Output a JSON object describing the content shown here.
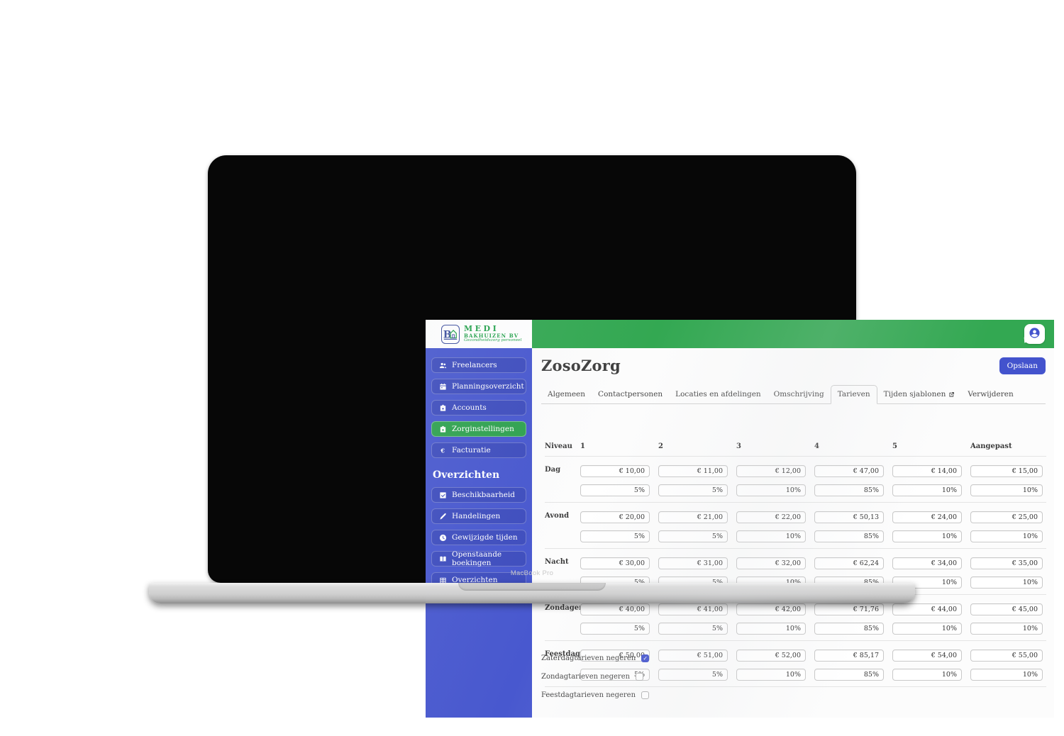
{
  "device": {
    "label": "MacBook Pro"
  },
  "logo": {
    "monogram": "B",
    "line1": "MEDI",
    "line2": "BAKHUIZEN BV",
    "tagline": "Gezondheidszorg personeel"
  },
  "sidebar": {
    "nav": [
      {
        "label": "Freelancers",
        "icon": "users-icon",
        "active": false
      },
      {
        "label": "Planningsoverzicht",
        "icon": "calendar-icon",
        "active": false
      },
      {
        "label": "Accounts",
        "icon": "medical-bag-icon",
        "active": false
      },
      {
        "label": "Zorginstellingen",
        "icon": "medical-bag-icon",
        "active": true
      },
      {
        "label": "Facturatie",
        "icon": "euro-icon",
        "active": false
      }
    ],
    "section_title": "Overzichten",
    "overview_nav": [
      {
        "label": "Beschikbaarheid",
        "icon": "check-square-icon",
        "active": false
      },
      {
        "label": "Handelingen",
        "icon": "pen-icon",
        "active": false
      },
      {
        "label": "Gewijzigde tijden",
        "icon": "clock-icon",
        "active": false
      },
      {
        "label": "Openstaande boekingen",
        "icon": "book-icon",
        "active": false
      },
      {
        "label": "Overzichten",
        "icon": "table-icon",
        "active": false
      }
    ]
  },
  "header": {
    "title": "ZosoZorg",
    "save_label": "Opslaan",
    "user_icon": "person-circle-icon"
  },
  "tabs": [
    {
      "label": "Algemeen",
      "active": false,
      "external": false
    },
    {
      "label": "Contactpersonen",
      "active": false,
      "external": false
    },
    {
      "label": "Locaties en afdelingen",
      "active": false,
      "external": false
    },
    {
      "label": "Omschrijving",
      "active": false,
      "external": false
    },
    {
      "label": "Tarieven",
      "active": true,
      "external": false
    },
    {
      "label": "Tijden sjablonen",
      "active": false,
      "external": true
    },
    {
      "label": "Verwijderen",
      "active": false,
      "external": false
    }
  ],
  "tariffs": {
    "columns": [
      "Niveau",
      "1",
      "2",
      "3",
      "4",
      "5",
      "Aangepast"
    ],
    "rows": [
      {
        "label": "Dag",
        "values": [
          "€ 10,00",
          "€ 11,00",
          "€ 12,00",
          "€ 47,00",
          "€ 14,00",
          "€ 15,00"
        ],
        "percents": [
          "5%",
          "5%",
          "10%",
          "85%",
          "10%",
          "10%"
        ]
      },
      {
        "label": "Avond",
        "values": [
          "€ 20,00",
          "€ 21,00",
          "€ 22,00",
          "€ 50,13",
          "€ 24,00",
          "€ 25,00"
        ],
        "percents": [
          "5%",
          "5%",
          "10%",
          "85%",
          "10%",
          "10%"
        ]
      },
      {
        "label": "Nacht",
        "values": [
          "€ 30,00",
          "€ 31,00",
          "€ 32,00",
          "€ 62,24",
          "€ 34,00",
          "€ 35,00"
        ],
        "percents": [
          "5%",
          "5%",
          "10%",
          "85%",
          "10%",
          "10%"
        ]
      },
      {
        "label": "Zondagen",
        "values": [
          "€ 40,00",
          "€ 41,00",
          "€ 42,00",
          "€ 71,76",
          "€ 44,00",
          "€ 45,00"
        ],
        "percents": [
          "5%",
          "5%",
          "10%",
          "85%",
          "10%",
          "10%"
        ]
      },
      {
        "label": "Feestdagen",
        "values": [
          "€ 50,00",
          "€ 51,00",
          "€ 52,00",
          "€ 85,17",
          "€ 54,00",
          "€ 55,00"
        ],
        "percents": [
          "5%",
          "5%",
          "10%",
          "85%",
          "10%",
          "10%"
        ]
      }
    ]
  },
  "checkboxes": [
    {
      "label": "Zaterdagtarieven negeren",
      "checked": true
    },
    {
      "label": "Zondagtarieven negeren",
      "checked": false
    },
    {
      "label": "Feestdagtarieven negeren",
      "checked": false
    }
  ],
  "colors": {
    "accent": "#4353cd",
    "sidebar": "#4858cf",
    "topbar_green": "#33a852",
    "active_item_green": "#2ea24f",
    "brand_green": "#23a24b",
    "brand_blue": "#3c4e9f"
  }
}
